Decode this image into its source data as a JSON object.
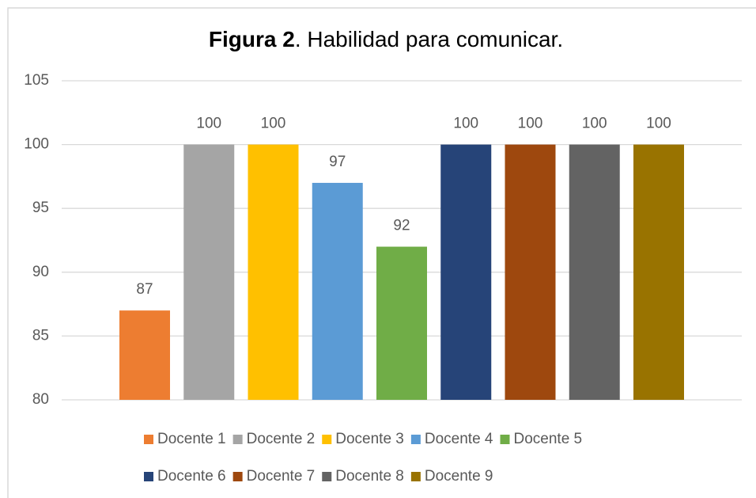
{
  "chart_data": {
    "type": "bar",
    "title": [
      "Figura 2",
      ". Habilidad para comunicar."
    ],
    "categories": [
      null
    ],
    "series": [
      {
        "name": "Docente 1",
        "color": "#ED7D31",
        "values": [
          87
        ]
      },
      {
        "name": "Docente 2",
        "color": "#A5A5A5",
        "values": [
          100
        ]
      },
      {
        "name": "Docente 3",
        "color": "#FFC000",
        "values": [
          100
        ]
      },
      {
        "name": "Docente 4",
        "color": "#5B9BD5",
        "values": [
          97
        ]
      },
      {
        "name": "Docente 5",
        "color": "#70AD47",
        "values": [
          92
        ]
      },
      {
        "name": "Docente 6",
        "color": "#264478",
        "values": [
          100
        ]
      },
      {
        "name": "Docente 7",
        "color": "#9E480E",
        "values": [
          100
        ]
      },
      {
        "name": "Docente 8",
        "color": "#636363",
        "values": [
          100
        ]
      },
      {
        "name": "Docente 9",
        "color": "#997300",
        "values": [
          100
        ]
      }
    ],
    "ylim": [
      80,
      105
    ],
    "yticks": [
      80,
      85,
      90,
      95,
      100,
      105
    ],
    "grid": true,
    "legend": "bottom"
  }
}
